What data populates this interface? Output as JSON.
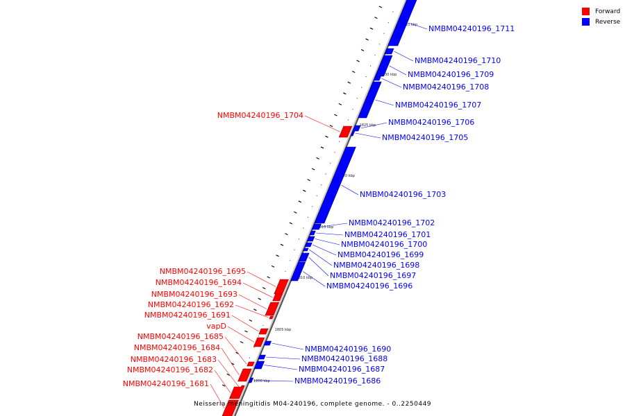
{
  "legend": {
    "forward": {
      "label": "Forward",
      "color": "#ff0000"
    },
    "reverse": {
      "label": "Reverse",
      "color": "#0000ff"
    }
  },
  "caption": "Neisseria meningitidis M04-240196, complete genome. - 0..2250449",
  "colors": {
    "forward": "#ff0000",
    "reverse": "#0000ff",
    "backbone": "#888888",
    "leader": "#000000"
  },
  "scale_labels": [
    "1835 kbp",
    "1830 kbp",
    "1825 kbp",
    "1820 kbp",
    "1815 kbp",
    "1810 kbp",
    "1805 kbp",
    "1800 kbp"
  ],
  "genes": [
    {
      "name": "NMBM04240196_1711",
      "strand": "reverse"
    },
    {
      "name": "NMBM04240196_1710",
      "strand": "reverse"
    },
    {
      "name": "NMBM04240196_1709",
      "strand": "reverse"
    },
    {
      "name": "NMBM04240196_1708",
      "strand": "reverse"
    },
    {
      "name": "NMBM04240196_1707",
      "strand": "reverse"
    },
    {
      "name": "NMBM04240196_1706",
      "strand": "reverse"
    },
    {
      "name": "NMBM04240196_1705",
      "strand": "reverse"
    },
    {
      "name": "NMBM04240196_1704",
      "strand": "forward"
    },
    {
      "name": "NMBM04240196_1703",
      "strand": "reverse"
    },
    {
      "name": "NMBM04240196_1702",
      "strand": "reverse"
    },
    {
      "name": "NMBM04240196_1701",
      "strand": "reverse"
    },
    {
      "name": "NMBM04240196_1700",
      "strand": "reverse"
    },
    {
      "name": "NMBM04240196_1699",
      "strand": "reverse"
    },
    {
      "name": "NMBM04240196_1698",
      "strand": "reverse"
    },
    {
      "name": "NMBM04240196_1697",
      "strand": "reverse"
    },
    {
      "name": "NMBM04240196_1696",
      "strand": "reverse"
    },
    {
      "name": "NMBM04240196_1695",
      "strand": "forward"
    },
    {
      "name": "NMBM04240196_1694",
      "strand": "forward"
    },
    {
      "name": "NMBM04240196_1693",
      "strand": "forward"
    },
    {
      "name": "NMBM04240196_1692",
      "strand": "forward"
    },
    {
      "name": "NMBM04240196_1691",
      "strand": "forward"
    },
    {
      "name": "vapD",
      "strand": "forward"
    },
    {
      "name": "NMBM04240196_1685",
      "strand": "forward"
    },
    {
      "name": "NMBM04240196_1684",
      "strand": "forward"
    },
    {
      "name": "NMBM04240196_1683",
      "strand": "forward"
    },
    {
      "name": "NMBM04240196_1682",
      "strand": "forward"
    },
    {
      "name": "NMBM04240196_1681",
      "strand": "forward"
    },
    {
      "name": "NMBM04240196_1690",
      "strand": "reverse"
    },
    {
      "name": "NMBM04240196_1688",
      "strand": "reverse"
    },
    {
      "name": "NMBM04240196_1687",
      "strand": "reverse"
    },
    {
      "name": "NMBM04240196_1686",
      "strand": "reverse"
    }
  ]
}
